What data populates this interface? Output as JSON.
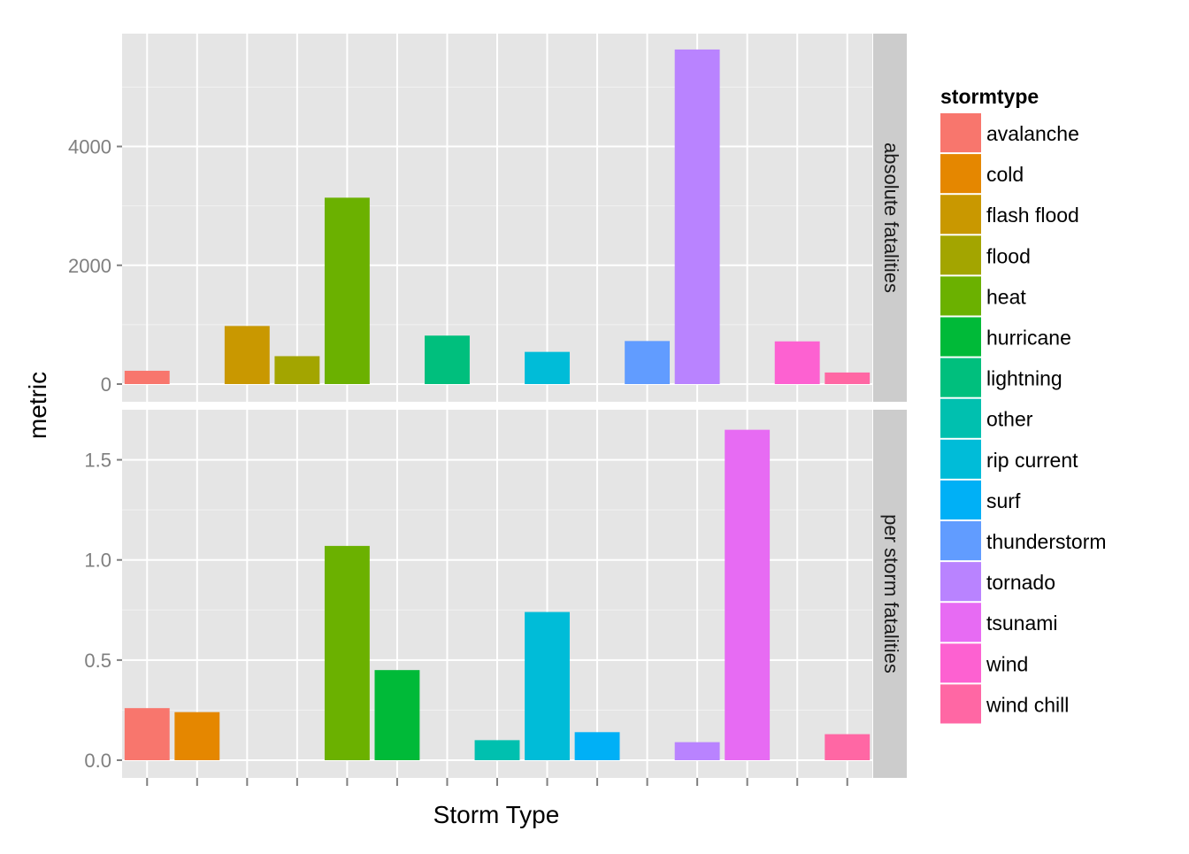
{
  "chart_data": {
    "type": "bar",
    "xlabel": "Storm Type",
    "ylabel": "metric",
    "legend_title": "stormtype",
    "legend_position": "right",
    "grid": true,
    "categories": [
      "avalanche",
      "cold",
      "flash flood",
      "flood",
      "heat",
      "hurricane",
      "lightning",
      "other",
      "rip current",
      "surf",
      "thunderstorm",
      "tornado",
      "tsunami",
      "wind",
      "wind chill"
    ],
    "colors": [
      "#F8766D",
      "#E58700",
      "#C99800",
      "#A3A500",
      "#6BB100",
      "#00BA38",
      "#00BF7D",
      "#00C0AF",
      "#00BCD8",
      "#00B0F6",
      "#619CFF",
      "#B983FF",
      "#E76BF3",
      "#FD61D1",
      "#FF67A4"
    ],
    "panels": [
      {
        "strip": "absolute fatalities",
        "ylim": [
          0,
          5900
        ],
        "yticks": [
          0,
          2000,
          4000
        ],
        "ytick_labels": [
          "0",
          "2000",
          "4000"
        ],
        "minor_yticks": [
          1000,
          3000,
          5000
        ],
        "values": [
          224,
          null,
          978,
          470,
          3138,
          null,
          816,
          null,
          542,
          null,
          725,
          5633,
          null,
          719,
          195
        ]
      },
      {
        "strip": "per storm fatalities",
        "ylim": [
          0,
          1.75
        ],
        "yticks": [
          0.0,
          0.5,
          1.0,
          1.5
        ],
        "ytick_labels": [
          "0.0",
          "0.5",
          "1.0",
          "1.5"
        ],
        "minor_yticks": [
          0.25,
          0.75,
          1.25
        ],
        "values": [
          0.26,
          0.24,
          null,
          null,
          1.07,
          0.45,
          null,
          0.1,
          0.74,
          0.14,
          null,
          0.09,
          1.65,
          null,
          0.13
        ]
      }
    ]
  }
}
